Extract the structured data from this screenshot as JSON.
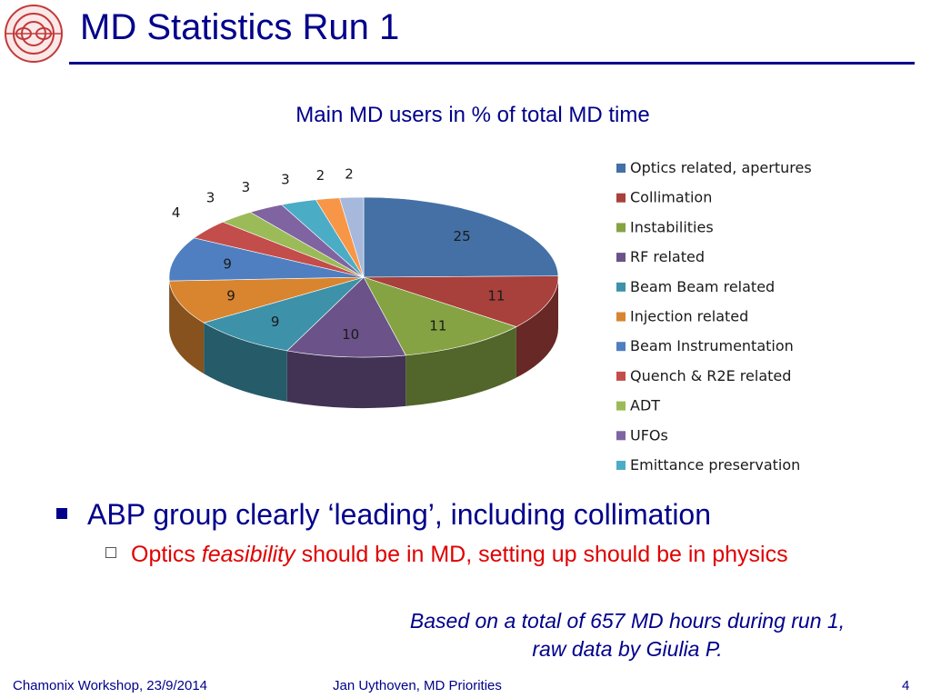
{
  "slide": {
    "title": "MD Statistics Run 1",
    "bullet1": "ABP group clearly ‘leading’, including collimation",
    "bullet2_a": "Optics ",
    "bullet2_b": "feasibility",
    "bullet2_c": " should be in MD, setting up should be in physics",
    "note_line1": "Based on a total of 657 MD hours during run 1,",
    "note_line2": "raw data by Giulia P.",
    "footer_left": "Chamonix Workshop, 23/9/2014",
    "footer_center": "Jan Uythoven, MD Priorities",
    "page_number": "4"
  },
  "colors": {
    "title": "#00008b",
    "bullet2": "#e00000"
  },
  "chart_data": {
    "type": "pie",
    "title": "Main MD users in % of total MD time",
    "style": "3d",
    "legend_placement": "right",
    "series": [
      {
        "name": "Optics related, apertures",
        "value": 25,
        "color": "#4470a6"
      },
      {
        "name": "Collimation",
        "value": 11,
        "color": "#a8403c"
      },
      {
        "name": "Instabilities",
        "value": 11,
        "color": "#85a343"
      },
      {
        "name": "RF related",
        "value": 10,
        "color": "#6b5289"
      },
      {
        "name": "Beam Beam related",
        "value": 9,
        "color": "#3d92a9"
      },
      {
        "name": "Injection related",
        "value": 9,
        "color": "#d9842f"
      },
      {
        "name": "Beam Instrumentation",
        "value": 9,
        "color": "#4f7fc0"
      },
      {
        "name": "Quench & R2E related",
        "value": 4,
        "color": "#c34d4a"
      },
      {
        "name": "ADT",
        "value": 3,
        "color": "#9bbb59"
      },
      {
        "name": "UFOs",
        "value": 3,
        "color": "#8064a2"
      },
      {
        "name": "Emittance preservation",
        "value": 3,
        "color": "#4bacc6"
      },
      {
        "name": "",
        "value": 2,
        "color": "#f79646"
      },
      {
        "name": "",
        "value": 2,
        "color": "#a6b9dc"
      }
    ]
  }
}
